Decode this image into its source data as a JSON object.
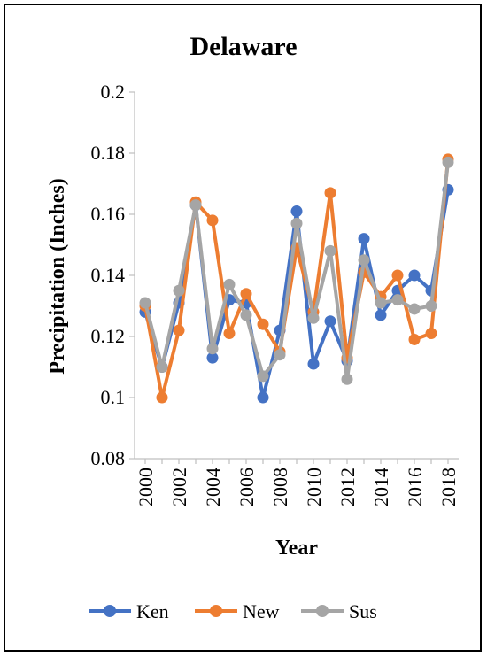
{
  "chart_data": {
    "type": "line",
    "title": "Delaware",
    "xlabel": "Year",
    "ylabel": "Precipitation (Inches)",
    "ylim": [
      0.08,
      0.2
    ],
    "yticks": [
      "0.08",
      "0.1",
      "0.12",
      "0.14",
      "0.16",
      "0.18",
      "0.2"
    ],
    "xticks": [
      "2000",
      "2002",
      "2004",
      "2006",
      "2008",
      "2010",
      "2012",
      "2014",
      "2016",
      "2018"
    ],
    "x": [
      2000,
      2001,
      2002,
      2003,
      2004,
      2005,
      2006,
      2007,
      2008,
      2009,
      2010,
      2011,
      2012,
      2013,
      2014,
      2015,
      2016,
      2017,
      2018
    ],
    "grid": false,
    "legend_position": "bottom",
    "series": [
      {
        "name": "Ken",
        "color": "#4472C4",
        "values": [
          0.128,
          0.11,
          0.131,
          0.163,
          0.113,
          0.132,
          0.131,
          0.1,
          0.122,
          0.161,
          0.111,
          0.125,
          0.112,
          0.152,
          0.127,
          0.135,
          0.14,
          0.135,
          0.168
        ]
      },
      {
        "name": "New",
        "color": "#ED7D31",
        "values": [
          0.13,
          0.1,
          0.122,
          0.164,
          0.158,
          0.121,
          0.134,
          0.124,
          0.115,
          0.149,
          0.128,
          0.167,
          0.113,
          0.141,
          0.133,
          0.14,
          0.119,
          0.121,
          0.178
        ]
      },
      {
        "name": "Sus",
        "color": "#A5A5A5",
        "values": [
          0.131,
          0.11,
          0.135,
          0.163,
          0.116,
          0.137,
          0.127,
          0.107,
          0.114,
          0.157,
          0.126,
          0.148,
          0.106,
          0.145,
          0.131,
          0.132,
          0.129,
          0.13,
          0.177
        ]
      }
    ]
  }
}
